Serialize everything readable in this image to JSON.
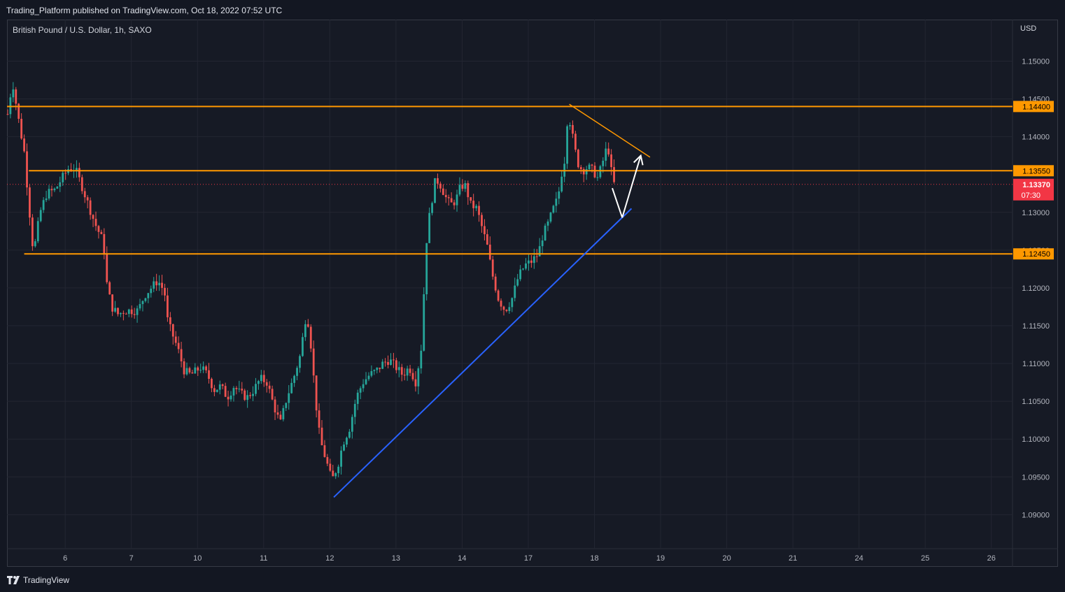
{
  "header": {
    "publish_text": "Trading_Platform published on TradingView.com, Oct 18, 2022 07:52 UTC"
  },
  "chart_header": {
    "symbol": "British Pound / U.S. Dollar, 1h, SAXO",
    "currency": "USD"
  },
  "footer": {
    "brand": "TradingView",
    "logo_icon": "tradingview-logo-icon"
  },
  "colors": {
    "background": "#161a25",
    "grid": "#232632",
    "up": "#26a69a",
    "down": "#ef5350",
    "level": "#ff9800",
    "trendline": "#2962ff",
    "arrow": "#ffffff",
    "last_price": "#f23645"
  },
  "chart_data": {
    "type": "candlestick",
    "title": "British Pound / U.S. Dollar, 1h, SAXO",
    "ylim": [
      1.0855,
      1.1555
    ],
    "y_ticks": [
      "1.15000",
      "1.14500",
      "1.14000",
      "1.13000",
      "1.12500",
      "1.12000",
      "1.11500",
      "1.11000",
      "1.10500",
      "1.10000",
      "1.09500",
      "1.09000"
    ],
    "x_ticks": [
      {
        "label": "6",
        "x": 6
      },
      {
        "label": "7",
        "x": 7
      },
      {
        "label": "10",
        "x": 8
      },
      {
        "label": "11",
        "x": 9
      },
      {
        "label": "12",
        "x": 10
      },
      {
        "label": "13",
        "x": 11
      },
      {
        "label": "14",
        "x": 12
      },
      {
        "label": "17",
        "x": 13
      },
      {
        "label": "18",
        "x": 14
      },
      {
        "label": "19",
        "x": 15
      },
      {
        "label": "20",
        "x": 16
      },
      {
        "label": "21",
        "x": 17
      },
      {
        "label": "24",
        "x": 18
      },
      {
        "label": "25",
        "x": 19
      },
      {
        "label": "26",
        "x": 20
      }
    ],
    "xlim": [
      5.12,
      20.32
    ],
    "grid": true,
    "horizontal_levels": [
      {
        "label": "1.14400",
        "value": 1.144,
        "x_start": 5.12
      },
      {
        "label": "1.13550",
        "value": 1.1355,
        "x_start": 5.45
      },
      {
        "label": "1.12450",
        "value": 1.1245,
        "x_start": 5.38
      }
    ],
    "last_price": {
      "label": "1.13370",
      "value": 1.1337,
      "countdown": "07:30"
    },
    "trendlines": [
      {
        "name": "support",
        "color": "trendline",
        "x1": 10.06,
        "y1": 1.0923,
        "x2": 14.56,
        "y2": 1.1305
      },
      {
        "name": "resistance",
        "color": "level",
        "x1": 13.62,
        "y1": 1.1443,
        "x2": 14.84,
        "y2": 1.1373
      }
    ],
    "arrows": [
      {
        "x1": 14.27,
        "y1": 1.1332,
        "x2": 14.42,
        "y2": 1.1293
      },
      {
        "x1": 14.42,
        "y1": 1.1293,
        "x2": 14.7,
        "y2": 1.1375
      }
    ],
    "price_anchors": [
      [
        5.12,
        1.1425
      ],
      [
        5.15,
        1.144
      ],
      [
        5.2,
        1.1475
      ],
      [
        5.3,
        1.142
      ],
      [
        5.38,
        1.138
      ],
      [
        5.45,
        1.131
      ],
      [
        5.52,
        1.1245
      ],
      [
        5.62,
        1.13
      ],
      [
        5.72,
        1.1325
      ],
      [
        5.85,
        1.133
      ],
      [
        5.95,
        1.1345
      ],
      [
        6.05,
        1.1358
      ],
      [
        6.15,
        1.1358
      ],
      [
        6.25,
        1.1335
      ],
      [
        6.35,
        1.131
      ],
      [
        6.45,
        1.1285
      ],
      [
        6.58,
        1.126
      ],
      [
        6.62,
        1.121
      ],
      [
        6.7,
        1.1175
      ],
      [
        6.8,
        1.1165
      ],
      [
        6.9,
        1.117
      ],
      [
        7.0,
        1.117
      ],
      [
        7.1,
        1.117
      ],
      [
        7.2,
        1.119
      ],
      [
        7.3,
        1.12
      ],
      [
        7.4,
        1.121
      ],
      [
        7.5,
        1.1195
      ],
      [
        7.55,
        1.1155
      ],
      [
        7.7,
        1.112
      ],
      [
        7.8,
        1.109
      ],
      [
        7.9,
        1.1085
      ],
      [
        8.05,
        1.1095
      ],
      [
        8.15,
        1.1085
      ],
      [
        8.25,
        1.1065
      ],
      [
        8.35,
        1.107
      ],
      [
        8.45,
        1.1055
      ],
      [
        8.55,
        1.107
      ],
      [
        8.65,
        1.106
      ],
      [
        8.75,
        1.1055
      ],
      [
        8.85,
        1.1065
      ],
      [
        8.95,
        1.108
      ],
      [
        9.05,
        1.1075
      ],
      [
        9.15,
        1.1045
      ],
      [
        9.25,
        1.102
      ],
      [
        9.35,
        1.1055
      ],
      [
        9.45,
        1.108
      ],
      [
        9.55,
        1.111
      ],
      [
        9.65,
        1.117
      ],
      [
        9.72,
        1.112
      ],
      [
        9.78,
        1.1055
      ],
      [
        9.85,
        1.1
      ],
      [
        9.95,
        1.097
      ],
      [
        10.03,
        1.0945
      ],
      [
        10.12,
        1.0965
      ],
      [
        10.2,
        1.0995
      ],
      [
        10.3,
        1.1015
      ],
      [
        10.4,
        1.1055
      ],
      [
        10.5,
        1.1075
      ],
      [
        10.6,
        1.1085
      ],
      [
        10.7,
        1.109
      ],
      [
        10.8,
        1.11
      ],
      [
        10.9,
        1.1105
      ],
      [
        11.0,
        1.1095
      ],
      [
        11.1,
        1.1085
      ],
      [
        11.2,
        1.1095
      ],
      [
        11.3,
        1.1075
      ],
      [
        11.38,
        1.112
      ],
      [
        11.42,
        1.119
      ],
      [
        11.47,
        1.1275
      ],
      [
        11.55,
        1.132
      ],
      [
        11.6,
        1.1345
      ],
      [
        11.68,
        1.1335
      ],
      [
        11.75,
        1.132
      ],
      [
        11.82,
        1.131
      ],
      [
        11.9,
        1.1315
      ],
      [
        11.98,
        1.1335
      ],
      [
        12.05,
        1.1335
      ],
      [
        12.13,
        1.131
      ],
      [
        12.22,
        1.1305
      ],
      [
        12.3,
        1.128
      ],
      [
        12.38,
        1.1255
      ],
      [
        12.45,
        1.122
      ],
      [
        12.55,
        1.1185
      ],
      [
        12.65,
        1.117
      ],
      [
        12.75,
        1.1185
      ],
      [
        12.85,
        1.1215
      ],
      [
        12.95,
        1.123
      ],
      [
        13.05,
        1.1235
      ],
      [
        13.15,
        1.1245
      ],
      [
        13.22,
        1.127
      ],
      [
        13.3,
        1.1285
      ],
      [
        13.38,
        1.1305
      ],
      [
        13.45,
        1.132
      ],
      [
        13.5,
        1.135
      ],
      [
        13.55,
        1.137
      ],
      [
        13.6,
        1.1435
      ],
      [
        13.65,
        1.141
      ],
      [
        13.7,
        1.1385
      ],
      [
        13.75,
        1.1365
      ],
      [
        13.82,
        1.1355
      ],
      [
        13.9,
        1.136
      ],
      [
        13.98,
        1.1355
      ],
      [
        14.05,
        1.1345
      ],
      [
        14.12,
        1.1365
      ],
      [
        14.2,
        1.139
      ],
      [
        14.27,
        1.1345
      ],
      [
        14.3,
        1.1337
      ]
    ]
  }
}
